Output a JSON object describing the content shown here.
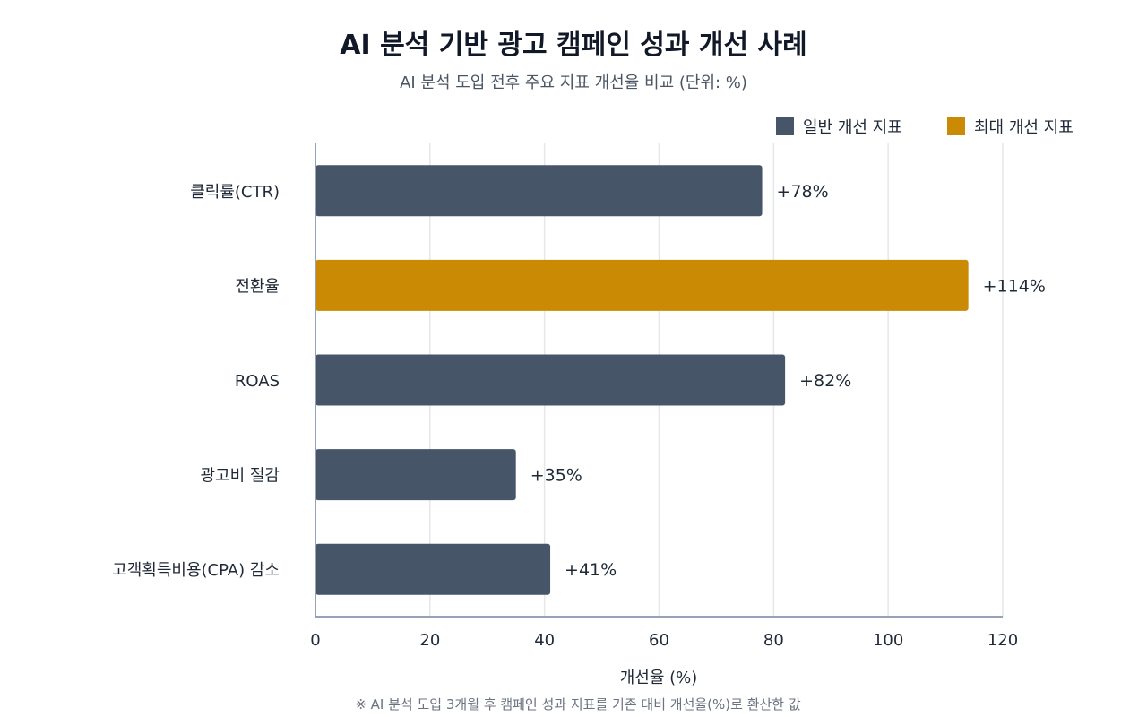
{
  "chart_data": {
    "type": "bar",
    "orientation": "horizontal",
    "title": "AI 분석 기반 광고 캠페인 성과 개선 사례",
    "subtitle": "AI 분석 도입 전후 주요 지표 개선율 비교 (단위: %)",
    "categories": [
      "클릭률(CTR)",
      "전환율",
      "ROAS",
      "광고비 절감",
      "고객획득비용(CPA) 감소"
    ],
    "values": [
      78,
      114,
      82,
      35,
      41
    ],
    "value_labels": [
      "+78%",
      "+114%",
      "+82%",
      "+35%",
      "+41%"
    ],
    "highlight": [
      false,
      true,
      false,
      false,
      false
    ],
    "xlabel": "개선율 (%)",
    "xlim": [
      0,
      120
    ],
    "xticks": [
      0,
      20,
      40,
      60,
      80,
      100,
      120
    ],
    "grid": true,
    "legend": {
      "placement": "top-right",
      "items": [
        {
          "label": "일반 개선 지표",
          "color": "#475569"
        },
        {
          "label": "최대 개선 지표",
          "color": "#ca8a04"
        }
      ]
    },
    "colors": {
      "normal": "#475569",
      "highlight": "#ca8a04",
      "grid": "#e5e7eb",
      "axis": "#94a3b8"
    },
    "note": "※ AI 분석 도입 3개월 후 캠페인 성과 지표를 기존 대비 개선율(%)로 환산한 값"
  }
}
